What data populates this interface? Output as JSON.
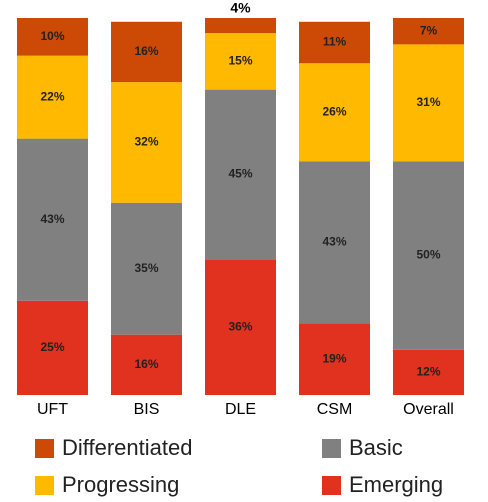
{
  "chart_data": {
    "type": "stacked_bar",
    "categories": [
      "UFT",
      "BIS",
      "DLE",
      "CSM",
      "Overall"
    ],
    "ylim": [
      0,
      100
    ],
    "series": [
      {
        "name": "Emerging",
        "color": "#e0321e",
        "values": [
          25,
          16,
          36,
          19,
          12
        ],
        "value_labels": [
          "25%",
          "16%",
          "36%",
          "19%",
          "12%"
        ]
      },
      {
        "name": "Basic",
        "color": "#808080",
        "values": [
          43,
          35,
          45,
          43,
          50
        ],
        "value_labels": [
          "43%",
          "35%",
          "45%",
          "43%",
          "50%"
        ]
      },
      {
        "name": "Progressing",
        "color": "#ffb900",
        "values": [
          22,
          32,
          15,
          26,
          31
        ],
        "value_labels": [
          "22%",
          "32%",
          "15%",
          "26%",
          "31%"
        ]
      },
      {
        "name": "Differentiated",
        "color": "#cc4a06",
        "values": [
          10,
          16,
          4,
          11,
          7
        ],
        "value_labels": [
          "10%",
          "16%",
          "4%",
          "11%",
          "7%"
        ]
      }
    ]
  }
}
